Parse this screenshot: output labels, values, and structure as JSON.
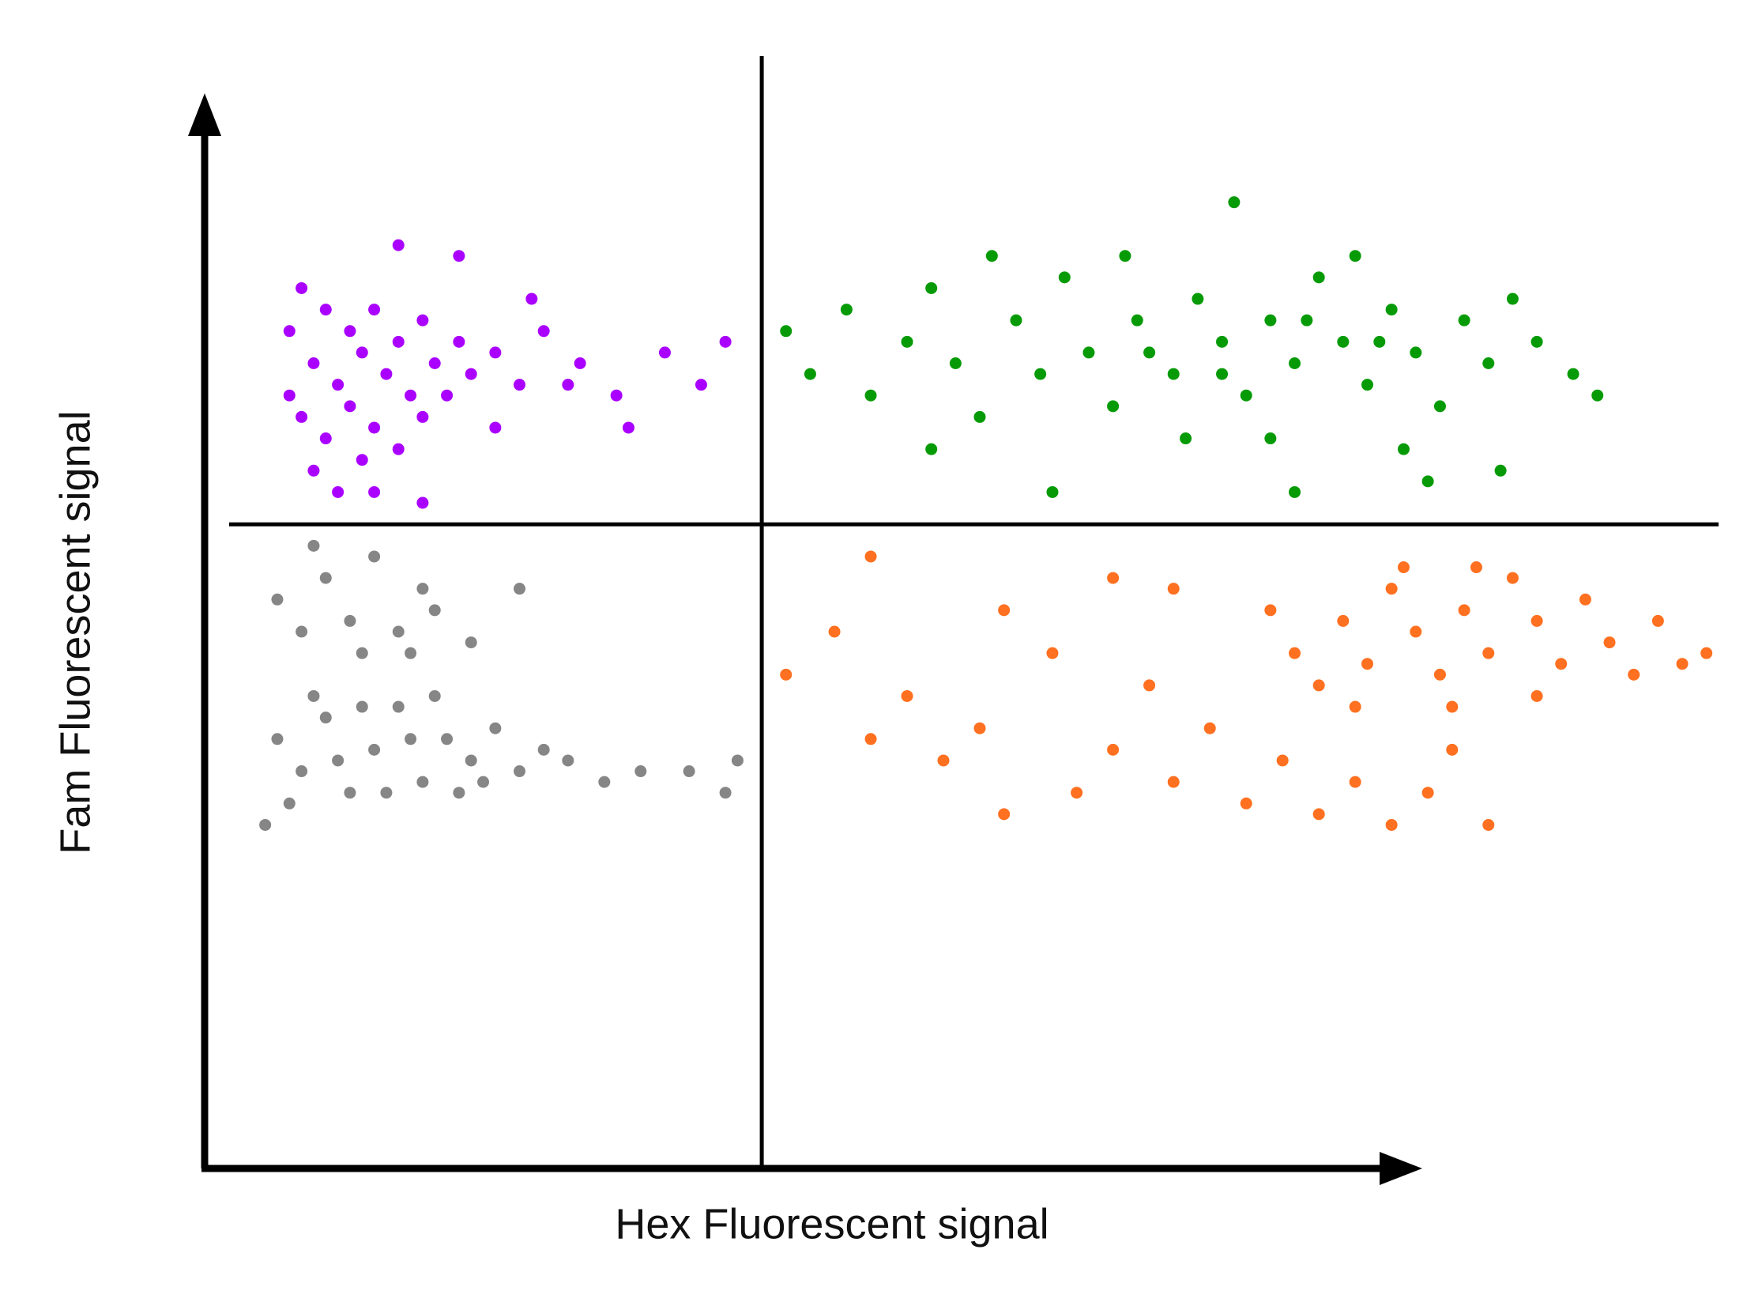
{
  "chart_data": {
    "type": "scatter",
    "x_label": "Hex Fluorescent signal",
    "y_label": "Fam Fluorescent signal",
    "xlim": [
      0,
      125
    ],
    "ylim": [
      0,
      100
    ],
    "x_threshold": 46,
    "y_threshold": 60,
    "series": [
      {
        "color": "#aa00ff",
        "x": [
          8,
          10,
          12,
          14,
          16,
          18,
          9,
          11,
          13,
          15,
          17,
          19,
          21,
          8,
          10,
          12,
          14,
          16,
          18,
          20,
          22,
          9,
          11,
          13,
          7,
          7,
          24,
          26,
          28,
          31,
          34,
          38,
          41,
          43,
          16,
          21,
          27,
          30,
          24,
          35,
          14,
          18
        ],
        "y": [
          82,
          80,
          78,
          80,
          77,
          79,
          75,
          73,
          76,
          74,
          72,
          75,
          77,
          70,
          68,
          71,
          69,
          67,
          70,
          72,
          74,
          65,
          63,
          66,
          78,
          72,
          76,
          73,
          78,
          75,
          72,
          76,
          73,
          77,
          86,
          85,
          81,
          73,
          69,
          69,
          63,
          62
        ]
      },
      {
        "color": "#069b06",
        "x": [
          48,
          50,
          53,
          55,
          58,
          60,
          62,
          64,
          67,
          69,
          71,
          73,
          75,
          77,
          80,
          82,
          84,
          86,
          88,
          90,
          92,
          94,
          96,
          98,
          100,
          102,
          104,
          106,
          108,
          110,
          113,
          115,
          85,
          95,
          99,
          88,
          81,
          101,
          90,
          70,
          60,
          76,
          65,
          107,
          78,
          91,
          97,
          84
        ],
        "y": [
          78,
          74,
          80,
          72,
          77,
          82,
          75,
          70,
          79,
          74,
          83,
          76,
          71,
          79,
          74,
          81,
          77,
          72,
          79,
          75,
          83,
          77,
          73,
          80,
          76,
          71,
          79,
          75,
          81,
          77,
          74,
          72,
          90,
          85,
          67,
          68,
          68,
          64,
          63,
          63,
          67,
          85,
          85,
          65,
          76,
          79,
          77,
          74
        ]
      },
      {
        "color": "#ff7020",
        "x": [
          88,
          90,
          92,
          94,
          96,
          98,
          100,
          102,
          104,
          106,
          108,
          110,
          112,
          114,
          116,
          118,
          120,
          122,
          124,
          95,
          103,
          110,
          99,
          105,
          48,
          52,
          55,
          58,
          61,
          64,
          66,
          70,
          72,
          75,
          78,
          80,
          83,
          86,
          89,
          92,
          95,
          98,
          101,
          103,
          55,
          75,
          66,
          106,
          80
        ],
        "y": [
          52,
          48,
          45,
          51,
          47,
          54,
          50,
          46,
          52,
          48,
          55,
          51,
          47,
          53,
          49,
          46,
          51,
          47,
          48,
          43,
          43,
          44,
          56,
          56,
          46,
          50,
          40,
          44,
          38,
          41,
          52,
          48,
          35,
          39,
          45,
          36,
          41,
          34,
          38,
          33,
          36,
          32,
          35,
          39,
          57,
          55,
          33,
          32,
          54
        ]
      },
      {
        "color": "#868686",
        "x": [
          6,
          8,
          10,
          12,
          14,
          16,
          18,
          20,
          22,
          24,
          26,
          28,
          7,
          9,
          11,
          13,
          15,
          17,
          19,
          21,
          23,
          5,
          30,
          33,
          36,
          40,
          43,
          44,
          6,
          8,
          10,
          12,
          14,
          16,
          18,
          9,
          13,
          17,
          19,
          22,
          26
        ],
        "y": [
          40,
          37,
          42,
          35,
          39,
          43,
          36,
          40,
          38,
          41,
          37,
          39,
          34,
          44,
          38,
          43,
          35,
          40,
          44,
          35,
          36,
          32,
          38,
          36,
          37,
          37,
          35,
          38,
          53,
          50,
          55,
          51,
          57,
          50,
          54,
          58,
          48,
          48,
          52,
          49,
          54
        ]
      }
    ]
  }
}
